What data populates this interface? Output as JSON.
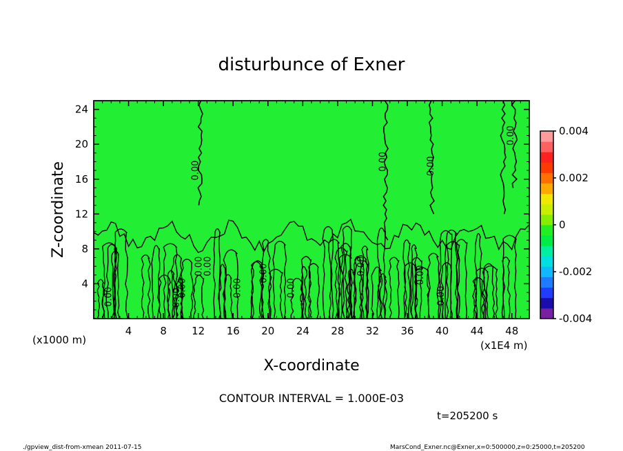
{
  "chart_data": {
    "type": "heatmap",
    "title": "disturbunce of Exner",
    "xlabel": "X-coordinate",
    "ylabel": "Z-coordinate",
    "x_unit_left": "(x1000 m)",
    "x_unit_right": "(x1E4 m)",
    "xlim": [
      0,
      50
    ],
    "ylim": [
      0,
      25
    ],
    "x_ticks": [
      "4",
      "8",
      "12",
      "16",
      "20",
      "24",
      "28",
      "32",
      "36",
      "40",
      "44",
      "48"
    ],
    "y_ticks": [
      "4",
      "8",
      "12",
      "16",
      "20",
      "24"
    ],
    "contour_interval_text": "CONTOUR INTERVAL = 1.000E-03",
    "time_text": "t=205200 s",
    "contour_labels": [
      "0.00",
      "0.00",
      "0.00",
      "0.00",
      "0.00",
      "0.00",
      "0.00",
      "0.00",
      "0.00",
      "0.00",
      "0.00",
      "0.00",
      "0.00",
      "0.00",
      "0.00"
    ],
    "colorbar": {
      "range": [
        -0.004,
        0.004
      ],
      "tick_labels": [
        "0.004",
        "0.002",
        "0",
        "-0.002",
        "-0.004"
      ],
      "tick_values": [
        0.004,
        0.002,
        0,
        -0.002,
        -0.004
      ],
      "colors": [
        "#7b1fa2",
        "#1a0dab",
        "#1f3cff",
        "#1f7bff",
        "#10b8ff",
        "#00e0e0",
        "#00f0a0",
        "#00ee44",
        "#22ee22",
        "#88ee00",
        "#c8ee00",
        "#f0e800",
        "#ffa800",
        "#ff7000",
        "#ff3a00",
        "#ff2020",
        "#ff6060",
        "#ff9a9a"
      ]
    },
    "field_background_color": "#22ee33"
  },
  "footer": {
    "left": "./gpview_dist-from-xmean  2011-07-15",
    "right": "MarsCond_Exner.nc@Exner,x=0:500000,z=0:25000,t=205200"
  }
}
